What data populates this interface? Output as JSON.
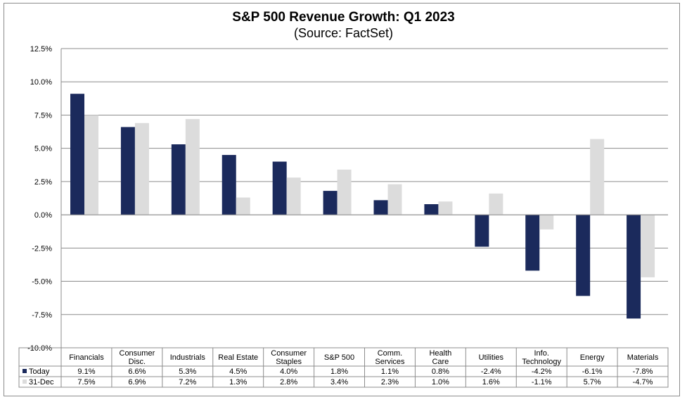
{
  "chart_data": {
    "type": "bar",
    "title": "S&P 500 Revenue Growth: Q1 2023",
    "subtitle": "(Source: FactSet)",
    "categories": [
      [
        "Financials"
      ],
      [
        "Consumer",
        "Disc."
      ],
      [
        "Industrials"
      ],
      [
        "Real Estate"
      ],
      [
        "Consumer",
        "Staples"
      ],
      [
        "S&P 500"
      ],
      [
        "Comm.",
        "Services"
      ],
      [
        "Health",
        "Care"
      ],
      [
        "Utilities"
      ],
      [
        "Info.",
        "Technology"
      ],
      [
        "Energy"
      ],
      [
        "Materials"
      ]
    ],
    "series": [
      {
        "name": "Today",
        "color": "#1b2a5c",
        "values": [
          9.1,
          6.6,
          5.3,
          4.5,
          4.0,
          1.8,
          1.1,
          0.8,
          -2.4,
          -4.2,
          -6.1,
          -7.8
        ],
        "labels": [
          "9.1%",
          "6.6%",
          "5.3%",
          "4.5%",
          "4.0%",
          "1.8%",
          "1.1%",
          "0.8%",
          "-2.4%",
          "-4.2%",
          "-6.1%",
          "-7.8%"
        ]
      },
      {
        "name": "31-Dec",
        "color": "#dcdcdc",
        "values": [
          7.5,
          6.9,
          7.2,
          1.3,
          2.8,
          3.4,
          2.3,
          1.0,
          1.6,
          -1.1,
          5.7,
          -4.7
        ],
        "labels": [
          "7.5%",
          "6.9%",
          "7.2%",
          "1.3%",
          "2.8%",
          "3.4%",
          "2.3%",
          "1.0%",
          "1.6%",
          "-1.1%",
          "5.7%",
          "-4.7%"
        ]
      }
    ],
    "ylim": [
      -10,
      12.5
    ],
    "yticks": [
      -10,
      -7.5,
      -5,
      -2.5,
      0,
      2.5,
      5,
      7.5,
      10,
      12.5
    ],
    "ytick_labels": [
      "-10.0%",
      "-7.5%",
      "-5.0%",
      "-2.5%",
      "0.0%",
      "2.5%",
      "5.0%",
      "7.5%",
      "10.0%",
      "12.5%"
    ],
    "grid": true,
    "legend": "data-table-bottom"
  }
}
